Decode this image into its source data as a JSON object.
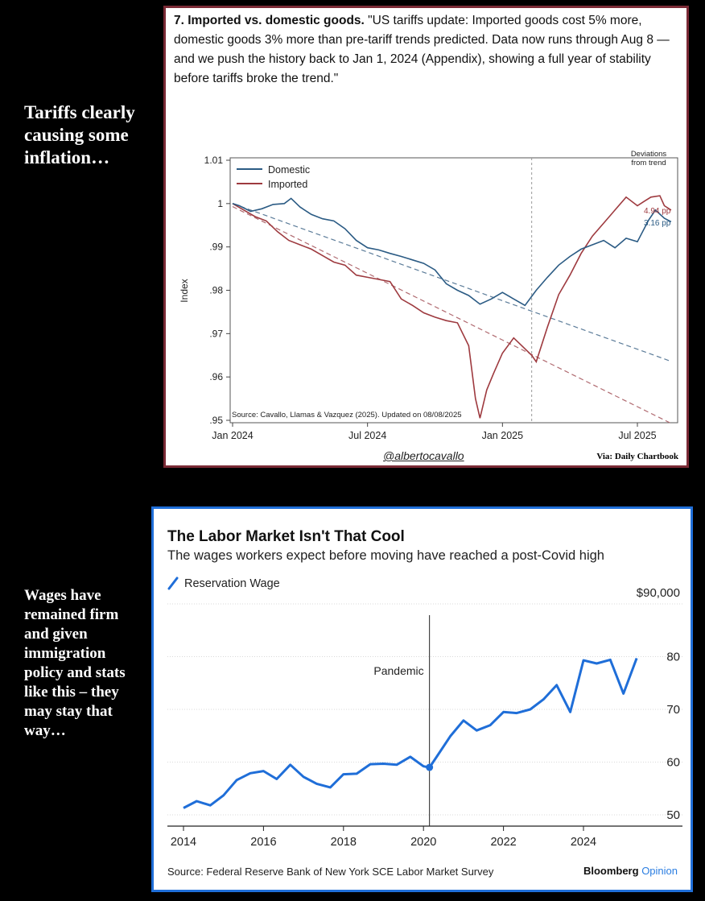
{
  "sidebar": {
    "caption_1": "Tariffs clearly causing some inflation…",
    "caption_2": "Wages have remained firm and given immigration policy and stats like this – they may stay that way…"
  },
  "chart_data": [
    {
      "type": "line",
      "title": "7. Imported vs. domestic goods.",
      "subtitle": "\"US tariffs update: Imported goods cost 5% more, domestic goods 3% more than pre-tariff trends predicted. Data now runs through Aug 8 — and we push the history back to Jan 1, 2024 (Appendix), showing a full year of stability before tariffs broke the trend.\"",
      "ylabel": "Index",
      "ylim": [
        0.95,
        1.01
      ],
      "yticks": [
        "1.01",
        "1",
        ".99",
        ".98",
        ".97",
        ".96",
        ".95"
      ],
      "xticks": [
        "Jan 2024",
        "Jul 2024",
        "Jan 2025",
        "Jul 2025"
      ],
      "x_months_range": [
        0,
        19.5
      ],
      "annotation": "Deviations from trend",
      "source": "Source: Cavallo, Llamas & Vazquez (2025). Updated on 08/08/2025",
      "handle": "@albertocavallo",
      "via": "Via: Daily Chartbook",
      "tariff_line_month": 13.3,
      "series": [
        {
          "name": "Domestic",
          "color": "#2b5b84",
          "end_label": "3.16 pp",
          "x": [
            0,
            0.3,
            0.8,
            1.3,
            1.8,
            2.3,
            2.6,
            3.0,
            3.5,
            4.0,
            4.5,
            5.0,
            5.5,
            6.0,
            6.5,
            7.0,
            7.5,
            8.0,
            8.5,
            9.0,
            9.5,
            10.0,
            10.5,
            11.0,
            11.5,
            12.0,
            12.5,
            13.0,
            13.5,
            14.0,
            14.5,
            15.0,
            15.5,
            16.0,
            16.5,
            17.0,
            17.5,
            18.0,
            18.5,
            18.8,
            19.2,
            19.5
          ],
          "values": [
            1.0,
            0.9995,
            0.9982,
            0.9988,
            0.9998,
            1.0,
            1.0012,
            0.9992,
            0.9975,
            0.9965,
            0.996,
            0.9942,
            0.9915,
            0.9898,
            0.9893,
            0.9885,
            0.9878,
            0.987,
            0.9862,
            0.9847,
            0.9815,
            0.98,
            0.9788,
            0.9768,
            0.978,
            0.9795,
            0.978,
            0.9765,
            0.98,
            0.983,
            0.9858,
            0.9878,
            0.9895,
            0.9905,
            0.9915,
            0.9898,
            0.992,
            0.9912,
            0.9962,
            0.9985,
            0.9966,
            0.9958
          ]
        },
        {
          "name": "Imported",
          "color": "#9e3a3f",
          "end_label": "4.94 pp",
          "x": [
            0,
            0.5,
            1.0,
            1.5,
            2.0,
            2.5,
            3.0,
            3.5,
            4.0,
            4.5,
            5.0,
            5.5,
            6.0,
            6.5,
            7.0,
            7.5,
            8.0,
            8.5,
            9.0,
            9.5,
            10.0,
            10.5,
            10.8,
            11.0,
            11.3,
            11.6,
            12.0,
            12.5,
            13.0,
            13.3,
            13.5,
            14.0,
            14.5,
            15.0,
            15.5,
            16.0,
            16.5,
            17.0,
            17.5,
            18.0,
            18.3,
            18.6,
            19.0,
            19.2,
            19.5
          ],
          "values": [
            1.0,
            0.9985,
            0.997,
            0.996,
            0.9935,
            0.9915,
            0.9905,
            0.9895,
            0.988,
            0.9865,
            0.9858,
            0.9835,
            0.983,
            0.9825,
            0.982,
            0.978,
            0.9765,
            0.9748,
            0.9738,
            0.973,
            0.9725,
            0.9672,
            0.955,
            0.9505,
            0.957,
            0.9608,
            0.9655,
            0.969,
            0.9665,
            0.965,
            0.9635,
            0.9715,
            0.979,
            0.9835,
            0.9885,
            0.9925,
            0.9955,
            0.9985,
            1.0015,
            0.9995,
            1.0005,
            1.0015,
            1.0018,
            0.9995,
            0.9985
          ]
        },
        {
          "name": "Domestic trend",
          "color": "#5c7c99",
          "dashed": true,
          "x": [
            0,
            19.5
          ],
          "values": [
            1.0,
            0.9636
          ]
        },
        {
          "name": "Imported trend",
          "color": "#b06a70",
          "dashed": true,
          "x": [
            0,
            19.5
          ],
          "values": [
            0.9993,
            0.9493
          ]
        }
      ]
    },
    {
      "type": "line",
      "title": "The Labor Market Isn't That Cool",
      "subtitle": "The wages workers expect before moving have reached a post-Covid high",
      "legend": "Reservation Wage",
      "series_color": "#1f6ed8",
      "ylim": [
        48000,
        92000
      ],
      "yticks": [
        "$90,000",
        "80",
        "70",
        "60",
        "50"
      ],
      "xticks": [
        "2014",
        "2016",
        "2018",
        "2020",
        "2022",
        "2024"
      ],
      "xlim": [
        2013.7,
        2025.9
      ],
      "annotation": "Pandemic",
      "pandemic_year": 2020.15,
      "source": "Source: Federal Reserve Bank of New York SCE Labor Market Survey",
      "brand": "Bloomberg",
      "brand_suffix": "Opinion",
      "x": [
        2014.0,
        2014.33,
        2014.67,
        2015.0,
        2015.33,
        2015.67,
        2016.0,
        2016.33,
        2016.67,
        2017.0,
        2017.33,
        2017.67,
        2018.0,
        2018.33,
        2018.67,
        2019.0,
        2019.33,
        2019.67,
        2020.0,
        2020.15,
        2020.33,
        2020.67,
        2021.0,
        2021.33,
        2021.67,
        2022.0,
        2022.33,
        2022.67,
        2023.0,
        2023.33,
        2023.67,
        2024.0,
        2024.33,
        2024.67,
        2025.0,
        2025.33
      ],
      "values": [
        51300,
        52600,
        51800,
        53700,
        56600,
        57900,
        58300,
        56800,
        59500,
        57200,
        55900,
        55200,
        57700,
        57800,
        59600,
        59700,
        59500,
        61000,
        59200,
        59000,
        61000,
        64900,
        67900,
        66000,
        67000,
        69500,
        69300,
        70000,
        71900,
        74600,
        69500,
        79300,
        78700,
        79400,
        73000,
        79700
      ]
    }
  ]
}
